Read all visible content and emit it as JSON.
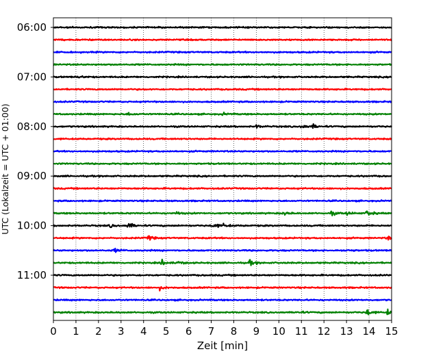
{
  "chart_data": {
    "type": "line",
    "title": "",
    "xlabel": "Zeit  [min]",
    "ylabel": "UTC (Lokalzeit = UTC + 01:00)",
    "xlim": [
      0,
      15
    ],
    "x_ticks": [
      "0",
      "1",
      "2",
      "3",
      "4",
      "5",
      "6",
      "7",
      "8",
      "9",
      "10",
      "11",
      "12",
      "13",
      "14",
      "15"
    ],
    "y_tick_labels": [
      "06:00",
      "07:00",
      "08:00",
      "09:00",
      "10:00",
      "11:00"
    ],
    "grid": "vertical dotted at each minute",
    "trace_interval_minutes": 15,
    "first_trace": "06:00",
    "trace_colors": [
      "#000000",
      "#ff0000",
      "#0000ff",
      "#008000"
    ],
    "traces": [
      {
        "start": "06:00",
        "color": "#000000",
        "events": []
      },
      {
        "start": "06:15",
        "color": "#ff0000",
        "events": []
      },
      {
        "start": "06:30",
        "color": "#0000ff",
        "events": []
      },
      {
        "start": "06:45",
        "color": "#008000",
        "events": []
      },
      {
        "start": "07:00",
        "color": "#000000",
        "events": [
          {
            "t": 1.1,
            "amp": 0.25
          }
        ]
      },
      {
        "start": "07:15",
        "color": "#ff0000",
        "events": []
      },
      {
        "start": "07:30",
        "color": "#0000ff",
        "events": []
      },
      {
        "start": "07:45",
        "color": "#008000",
        "events": [
          {
            "t": 3.3,
            "amp": 0.3
          },
          {
            "t": 7.5,
            "amp": 0.25
          }
        ]
      },
      {
        "start": "08:00",
        "color": "#000000",
        "events": [
          {
            "t": 9.0,
            "amp": 0.3
          },
          {
            "t": 11.0,
            "amp": 0.55
          },
          {
            "t": 11.5,
            "amp": 0.45
          }
        ]
      },
      {
        "start": "08:15",
        "color": "#ff0000",
        "events": []
      },
      {
        "start": "08:30",
        "color": "#0000ff",
        "events": []
      },
      {
        "start": "08:45",
        "color": "#008000",
        "events": []
      },
      {
        "start": "09:00",
        "color": "#000000",
        "events": []
      },
      {
        "start": "09:15",
        "color": "#ff0000",
        "events": []
      },
      {
        "start": "09:30",
        "color": "#0000ff",
        "events": []
      },
      {
        "start": "09:45",
        "color": "#008000",
        "events": [
          {
            "t": 5.4,
            "amp": 0.3
          },
          {
            "t": 10.2,
            "amp": 0.45
          },
          {
            "t": 12.3,
            "amp": 0.5
          },
          {
            "t": 13.0,
            "amp": 0.4
          },
          {
            "t": 13.9,
            "amp": 0.75
          }
        ]
      },
      {
        "start": "10:00",
        "color": "#000000",
        "events": [
          {
            "t": 2.5,
            "amp": 0.35
          },
          {
            "t": 3.3,
            "amp": 0.8
          },
          {
            "t": 7.1,
            "amp": 0.6
          },
          {
            "t": 7.5,
            "amp": 0.4
          }
        ]
      },
      {
        "start": "10:15",
        "color": "#ff0000",
        "events": [
          {
            "t": 4.2,
            "amp": 0.55
          },
          {
            "t": 14.8,
            "amp": 0.55
          }
        ]
      },
      {
        "start": "10:30",
        "color": "#0000ff",
        "events": [
          {
            "t": 2.7,
            "amp": 0.45
          },
          {
            "t": 13.0,
            "amp": 0.3
          }
        ]
      },
      {
        "start": "10:45",
        "color": "#008000",
        "events": [
          {
            "t": 4.8,
            "amp": 0.65
          },
          {
            "t": 5.5,
            "amp": 0.3
          },
          {
            "t": 8.7,
            "amp": 0.6
          }
        ]
      },
      {
        "start": "11:00",
        "color": "#000000",
        "events": []
      },
      {
        "start": "11:15",
        "color": "#ff0000",
        "events": [
          {
            "t": 4.7,
            "amp": 0.45
          }
        ]
      },
      {
        "start": "11:30",
        "color": "#0000ff",
        "events": []
      },
      {
        "start": "11:45",
        "color": "#008000",
        "events": [
          {
            "t": 10.8,
            "amp": 0.3
          },
          {
            "t": 13.9,
            "amp": 0.7
          },
          {
            "t": 14.8,
            "amp": 0.6
          }
        ]
      }
    ]
  }
}
